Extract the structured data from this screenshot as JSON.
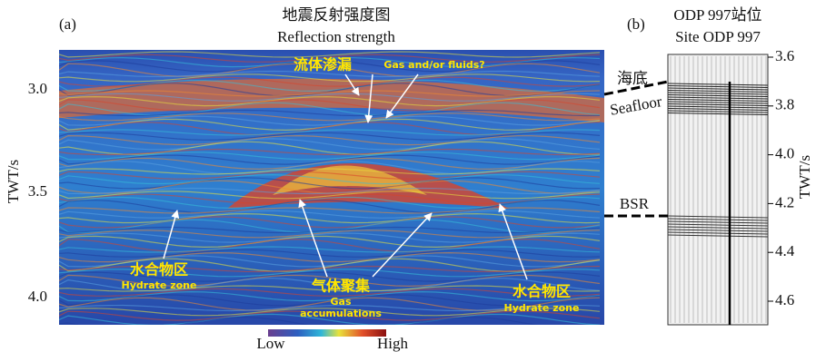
{
  "panel_a": {
    "label": "(a)",
    "title_cn": "地震反射强度图",
    "title_en": "Reflection strength",
    "axis_label": "TWT/s",
    "yticks": [
      "3.0",
      "3.5",
      "4.0"
    ],
    "annotations": {
      "fluid_cn": "流体渗漏",
      "fluid_en": "Gas and/or fluids?",
      "hydrate_left_cn": "水合物区",
      "hydrate_left_en": "Hydrate zone",
      "gas_cn": "气体聚集",
      "gas_en_1": "Gas",
      "gas_en_2": "accumulations",
      "hydrate_right_cn": "水合物区",
      "hydrate_right_en": "Hydrate zone"
    },
    "colorbar": {
      "low": "Low",
      "high": "High"
    }
  },
  "panel_b": {
    "label": "(b)",
    "title_1": "ODP 997站位",
    "title_2": "Site ODP 997",
    "axis_label": "TWT/s",
    "yticks": [
      "3.6",
      "3.8",
      "4.0",
      "4.2",
      "4.4",
      "4.6"
    ],
    "seafloor_cn": "海底",
    "seafloor_en": "Seafloor",
    "bsr": "BSR"
  }
}
